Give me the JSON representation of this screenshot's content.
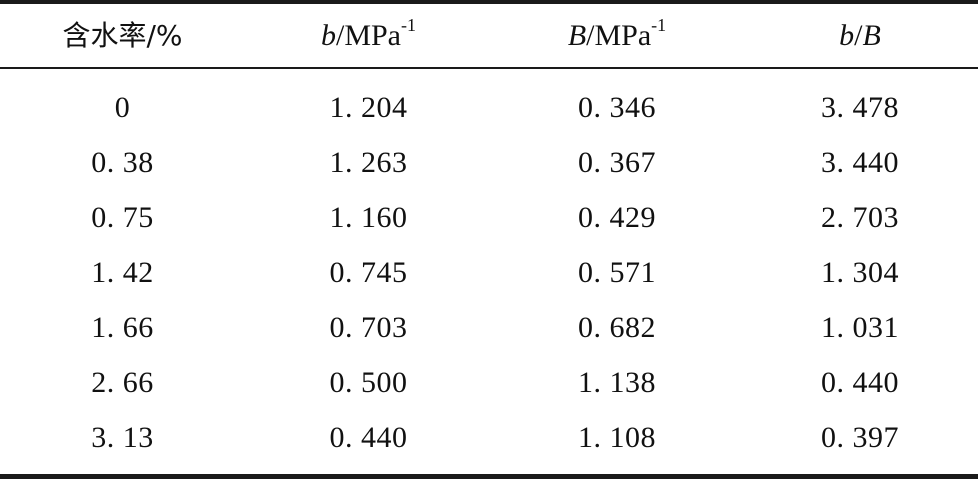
{
  "table": {
    "headers": {
      "col1": "含水率/%",
      "col2_main": "b",
      "col2_unit": "/MPa",
      "col2_exp": "-1",
      "col3_main": "B",
      "col3_unit": "/MPa",
      "col3_exp": "-1",
      "col4_a": "b",
      "col4_sep": "/",
      "col4_b": "B"
    },
    "rows": [
      [
        "0",
        "1. 204",
        "0. 346",
        "3. 478"
      ],
      [
        "0. 38",
        "1. 263",
        "0. 367",
        "3. 440"
      ],
      [
        "0. 75",
        "1. 160",
        "0. 429",
        "2. 703"
      ],
      [
        "1. 42",
        "0. 745",
        "0. 571",
        "1. 304"
      ],
      [
        "1. 66",
        "0. 703",
        "0. 682",
        "1. 031"
      ],
      [
        "2. 66",
        "0. 500",
        "1. 138",
        "0. 440"
      ],
      [
        "3. 13",
        "0. 440",
        "1. 108",
        "0. 397"
      ]
    ]
  }
}
